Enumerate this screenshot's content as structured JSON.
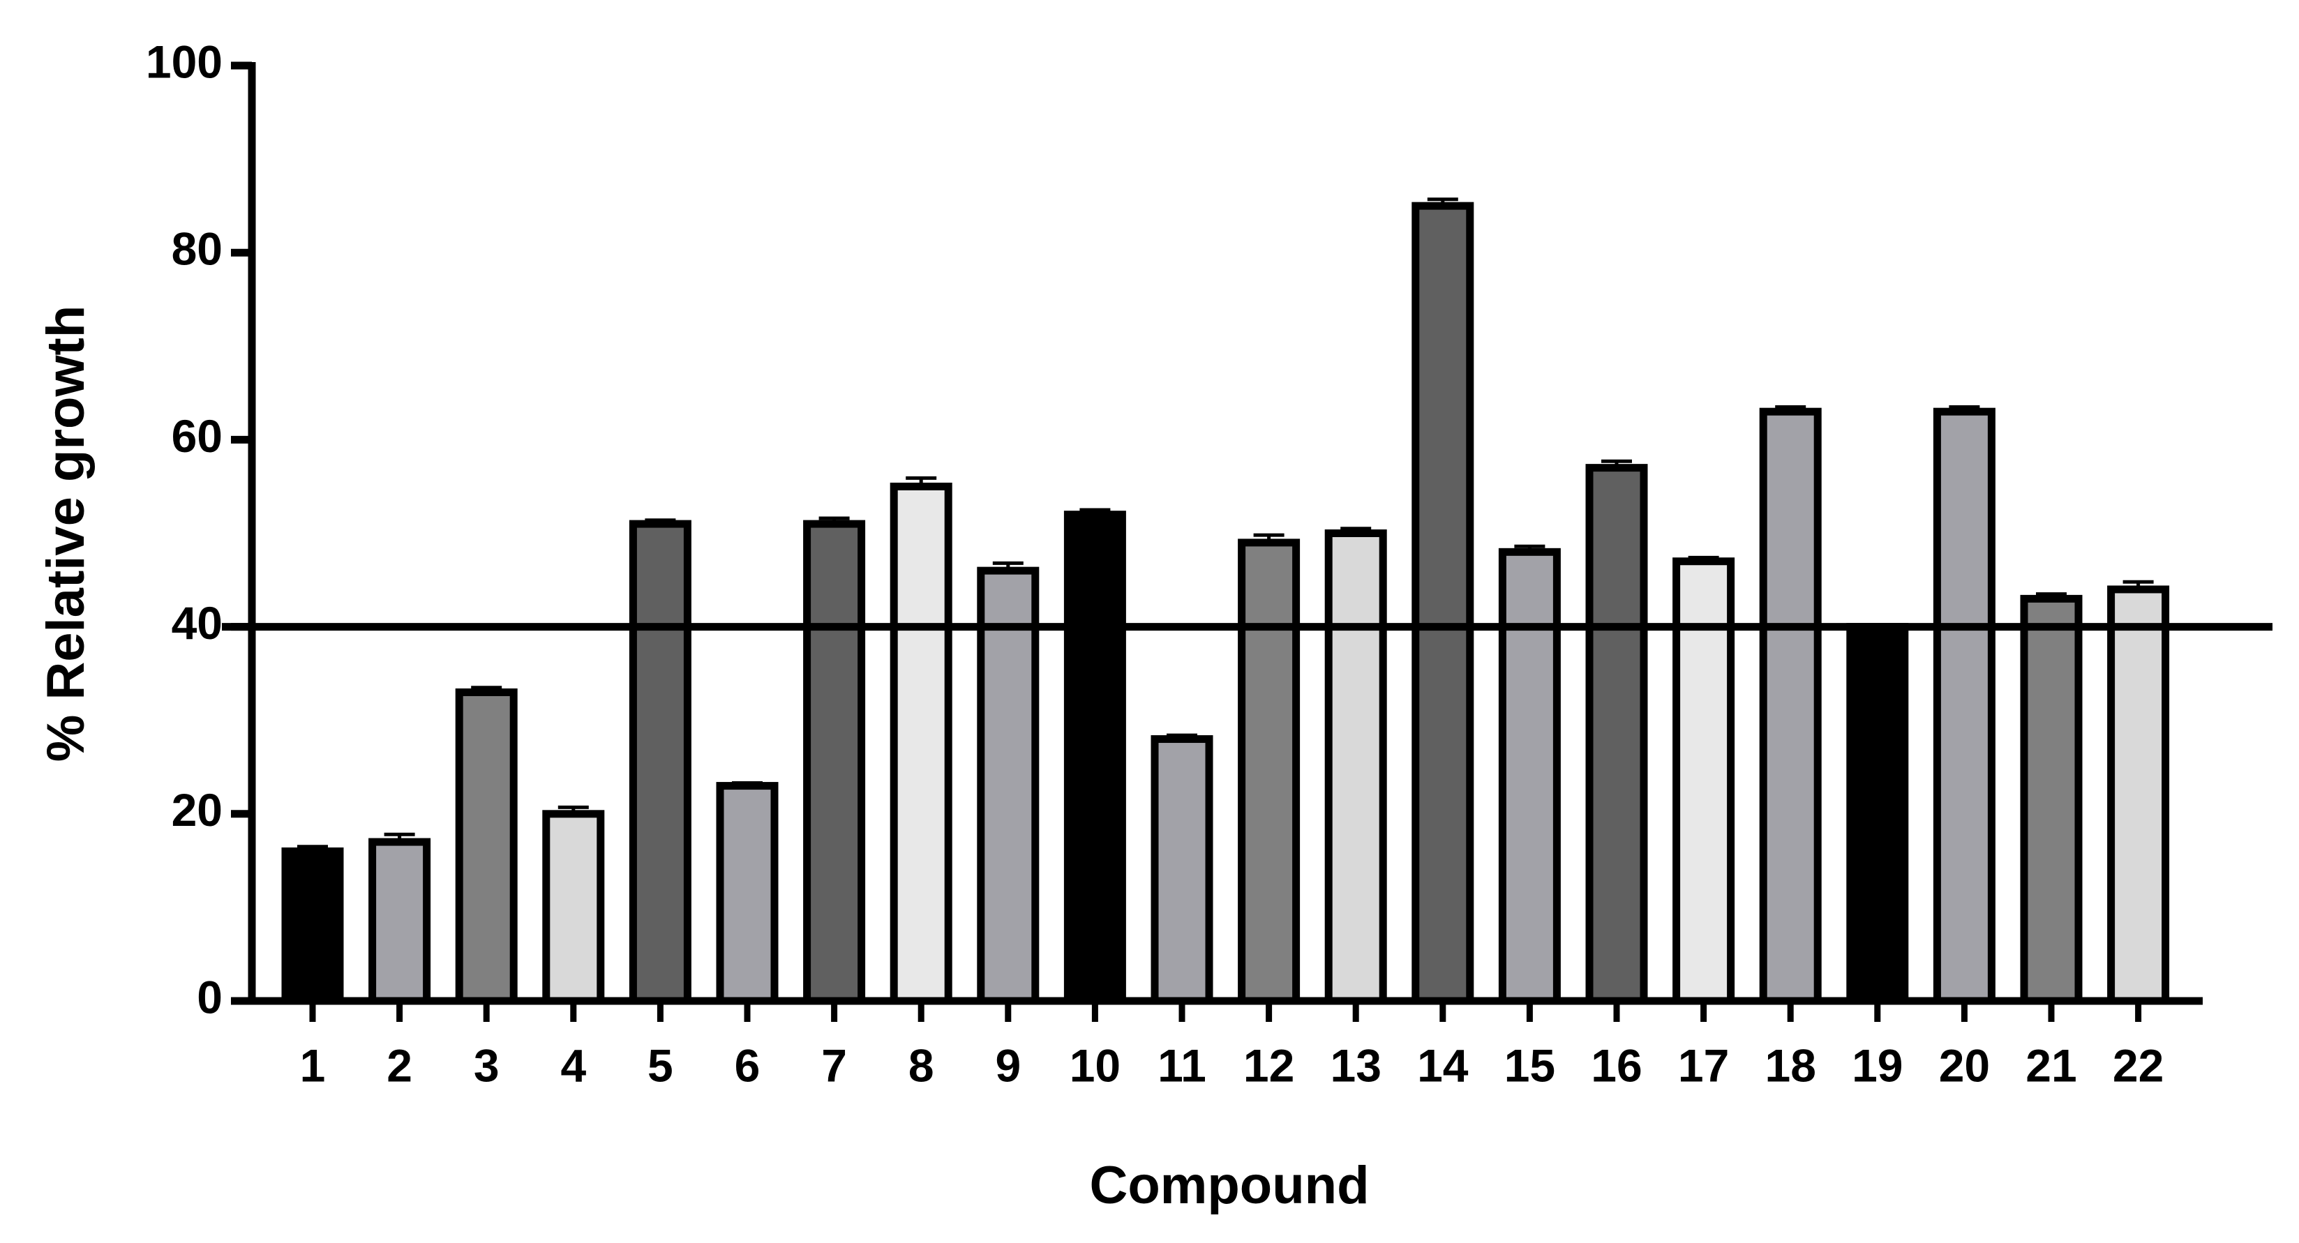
{
  "chart_data": {
    "type": "bar",
    "xlabel": "Compound",
    "ylabel": "% Relative growth",
    "categories": [
      "1",
      "2",
      "3",
      "4",
      "5",
      "6",
      "7",
      "8",
      "9",
      "10",
      "11",
      "12",
      "13",
      "14",
      "15",
      "16",
      "17",
      "18",
      "19",
      "20",
      "21",
      "22"
    ],
    "values": [
      16,
      17,
      33,
      20,
      51,
      23,
      51,
      55,
      46,
      52,
      28,
      49,
      50,
      85,
      48,
      57,
      47,
      63,
      40,
      63,
      43,
      44
    ],
    "errors": [
      0.5,
      0.8,
      0.5,
      0.7,
      0.4,
      0.3,
      0.6,
      0.9,
      0.8,
      0.5,
      0.4,
      0.8,
      0.5,
      0.7,
      0.6,
      0.7,
      0.4,
      0.5,
      0,
      0.5,
      0.5,
      0.8
    ],
    "colors": [
      "#000000",
      "#a2a2a8",
      "#808080",
      "#d9d9d9",
      "#606060",
      "#a2a2a8",
      "#606060",
      "#e8e8e8",
      "#a2a2a8",
      "#000000",
      "#a2a2a8",
      "#808080",
      "#d9d9d9",
      "#606060",
      "#a2a2a8",
      "#606060",
      "#e8e8e8",
      "#a2a2a8",
      "#000000",
      "#a2a2a8",
      "#808080",
      "#d9d9d9"
    ],
    "reference_line": 40,
    "ylim": [
      0,
      100
    ],
    "yticks": [
      0,
      20,
      40,
      60,
      80,
      100
    ]
  }
}
